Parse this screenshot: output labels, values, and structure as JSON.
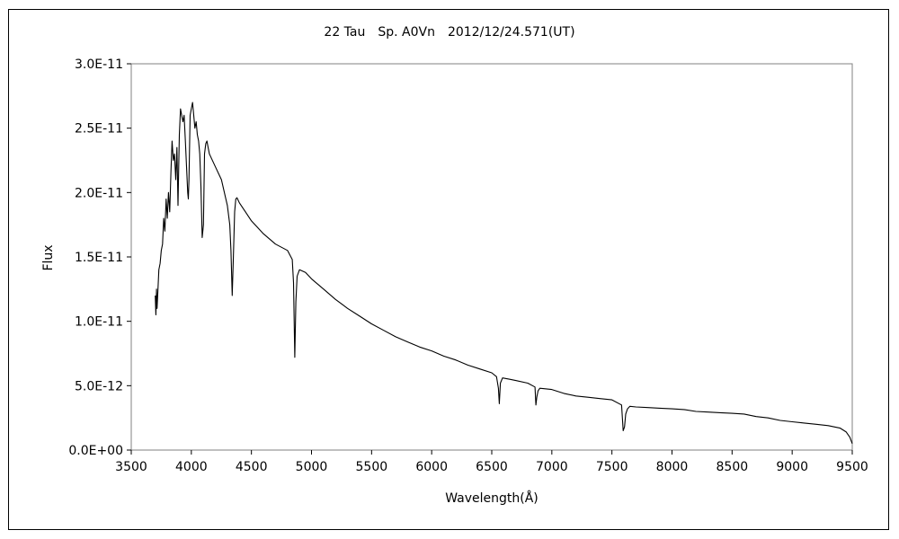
{
  "chart_data": {
    "type": "line",
    "title": "22 Tau　Sp. A0Vn　2012/12/24.571(UT)",
    "xlabel": "Wavelength(Å)",
    "ylabel": "Flux",
    "xlim": [
      3500,
      9500
    ],
    "ylim": [
      0,
      3e-11
    ],
    "x_ticks": [
      "3500",
      "4000",
      "4500",
      "5000",
      "5500",
      "6000",
      "6500",
      "7000",
      "7500",
      "8000",
      "8500",
      "9000",
      "9500"
    ],
    "y_ticks": [
      "0.0E+00",
      "5.0E-12",
      "1.0E-11",
      "1.5E-11",
      "2.0E-11",
      "2.5E-11",
      "3.0E-11"
    ],
    "grid": false,
    "legend": "none",
    "series": [
      {
        "color": "#000000",
        "x": [
          3700,
          3705,
          3710,
          3715,
          3720,
          3730,
          3740,
          3750,
          3760,
          3770,
          3780,
          3790,
          3800,
          3810,
          3820,
          3830,
          3840,
          3850,
          3860,
          3870,
          3880,
          3889,
          3895,
          3900,
          3910,
          3920,
          3930,
          3940,
          3950,
          3960,
          3970,
          3975,
          3980,
          3990,
          4000,
          4010,
          4020,
          4030,
          4040,
          4050,
          4060,
          4070,
          4080,
          4090,
          4101,
          4110,
          4120,
          4130,
          4140,
          4150,
          4200,
          4250,
          4300,
          4320,
          4330,
          4340,
          4350,
          4360,
          4370,
          4380,
          4400,
          4450,
          4500,
          4600,
          4700,
          4800,
          4840,
          4850,
          4861,
          4870,
          4880,
          4900,
          4950,
          5000,
          5100,
          5200,
          5300,
          5400,
          5500,
          5600,
          5700,
          5800,
          5900,
          6000,
          6100,
          6200,
          6300,
          6400,
          6500,
          6540,
          6555,
          6563,
          6572,
          6590,
          6650,
          6700,
          6800,
          6860,
          6867,
          6875,
          6885,
          6900,
          7000,
          7100,
          7200,
          7300,
          7400,
          7500,
          7580,
          7594,
          7605,
          7615,
          7630,
          7650,
          7700,
          7800,
          7900,
          8000,
          8100,
          8200,
          8300,
          8400,
          8500,
          8600,
          8700,
          8800,
          8900,
          9000,
          9100,
          9200,
          9300,
          9400,
          9450,
          9480,
          9500
        ],
        "y": [
          1.2e-11,
          1.05e-11,
          1.25e-11,
          1.1e-11,
          1.2e-11,
          1.4e-11,
          1.45e-11,
          1.55e-11,
          1.6e-11,
          1.8e-11,
          1.7e-11,
          1.95e-11,
          1.8e-11,
          2e-11,
          1.85e-11,
          2.15e-11,
          2.4e-11,
          2.25e-11,
          2.3e-11,
          2.1e-11,
          2.35e-11,
          1.9e-11,
          2.2e-11,
          2.45e-11,
          2.65e-11,
          2.6e-11,
          2.55e-11,
          2.6e-11,
          2.4e-11,
          2.2e-11,
          2e-11,
          1.95e-11,
          2.1e-11,
          2.6e-11,
          2.65e-11,
          2.7e-11,
          2.6e-11,
          2.5e-11,
          2.55e-11,
          2.45e-11,
          2.4e-11,
          2.3e-11,
          2.05e-11,
          1.65e-11,
          1.75e-11,
          2.3e-11,
          2.38e-11,
          2.4e-11,
          2.35e-11,
          2.3e-11,
          2.2e-11,
          2.1e-11,
          1.9e-11,
          1.75e-11,
          1.55e-11,
          1.2e-11,
          1.5e-11,
          1.85e-11,
          1.95e-11,
          1.96e-11,
          1.92e-11,
          1.85e-11,
          1.78e-11,
          1.68e-11,
          1.6e-11,
          1.55e-11,
          1.48e-11,
          1.3e-11,
          7.2e-12,
          1.15e-11,
          1.35e-11,
          1.4e-11,
          1.38e-11,
          1.33e-11,
          1.25e-11,
          1.17e-11,
          1.1e-11,
          1.04e-11,
          9.8e-12,
          9.3e-12,
          8.8e-12,
          8.4e-12,
          8e-12,
          7.7e-12,
          7.3e-12,
          7e-12,
          6.6e-12,
          6.3e-12,
          6e-12,
          5.7e-12,
          4.8e-12,
          3.6e-12,
          5.2e-12,
          5.6e-12,
          5.5e-12,
          5.4e-12,
          5.2e-12,
          4.9e-12,
          3.5e-12,
          4.1e-12,
          4.6e-12,
          4.8e-12,
          4.7e-12,
          4.4e-12,
          4.2e-12,
          4.1e-12,
          4e-12,
          3.9e-12,
          3.5e-12,
          1.5e-12,
          1.8e-12,
          2.8e-12,
          3.2e-12,
          3.4e-12,
          3.35e-12,
          3.3e-12,
          3.25e-12,
          3.2e-12,
          3.15e-12,
          3e-12,
          2.95e-12,
          2.9e-12,
          2.85e-12,
          2.8e-12,
          2.6e-12,
          2.5e-12,
          2.3e-12,
          2.2e-12,
          2.1e-12,
          2e-12,
          1.9e-12,
          1.7e-12,
          1.4e-12,
          1e-12,
          5e-13
        ]
      }
    ]
  }
}
